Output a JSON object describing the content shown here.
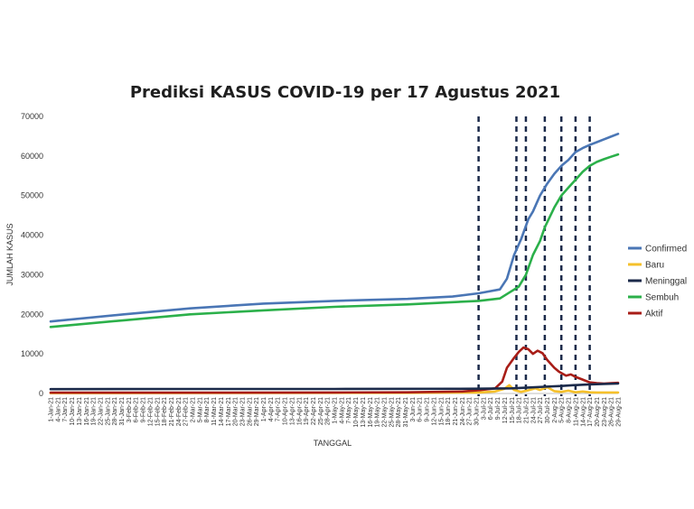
{
  "chart_data": {
    "type": "line",
    "title": "Prediksi KASUS COVID-19 per 17 Agustus 2021",
    "xlabel": "TANGGAL",
    "ylabel": "JUMLAH KASUS",
    "ylim": [
      0,
      70000
    ],
    "yticks": [
      0,
      10000,
      20000,
      30000,
      40000,
      50000,
      60000,
      70000
    ],
    "legend_position": "right",
    "grid": false,
    "x_start": "1-Jan-21",
    "x_end": "29-Aug-21",
    "x_ticks": [
      "1-Jan-21",
      "4-Jan-21",
      "7-Jan-21",
      "10-Jan-21",
      "13-Jan-21",
      "16-Jan-21",
      "19-Jan-21",
      "22-Jan-21",
      "25-Jan-21",
      "28-Jan-21",
      "31-Jan-21",
      "3-Feb-21",
      "6-Feb-21",
      "9-Feb-21",
      "12-Feb-21",
      "15-Feb-21",
      "18-Feb-21",
      "21-Feb-21",
      "24-Feb-21",
      "27-Feb-21",
      "2-Mar-21",
      "5-Mar-21",
      "8-Mar-21",
      "11-Mar-21",
      "14-Mar-21",
      "17-Mar-21",
      "20-Mar-21",
      "23-Mar-21",
      "26-Mar-21",
      "29-Mar-21",
      "1-Apr-21",
      "4-Apr-21",
      "7-Apr-21",
      "10-Apr-21",
      "13-Apr-21",
      "16-Apr-21",
      "19-Apr-21",
      "22-Apr-21",
      "25-Apr-21",
      "28-Apr-21",
      "1-May-21",
      "4-May-21",
      "7-May-21",
      "10-May-21",
      "13-May-21",
      "16-May-21",
      "19-May-21",
      "22-May-21",
      "25-May-21",
      "28-May-21",
      "31-May-21",
      "3-Jun-21",
      "6-Jun-21",
      "9-Jun-21",
      "12-Jun-21",
      "15-Jun-21",
      "18-Jun-21",
      "21-Jun-21",
      "24-Jun-21",
      "27-Jun-21",
      "30-Jun-21",
      "3-Jul-21",
      "6-Jul-21",
      "9-Jul-21",
      "12-Jul-21",
      "15-Jul-21",
      "18-Jul-21",
      "21-Jul-21",
      "24-Jul-21",
      "27-Jul-21",
      "30-Jul-21",
      "2-Aug-21",
      "5-Aug-21",
      "8-Aug-21",
      "11-Aug-21",
      "14-Aug-21",
      "17-Aug-21",
      "20-Aug-21",
      "23-Aug-21",
      "26-Aug-21",
      "29-Aug-21"
    ],
    "reference_lines": [
      "1-Jul-21",
      "17-Jul-21",
      "21-Jul-21",
      "29-Jul-21",
      "5-Aug-21",
      "11-Aug-21",
      "17-Aug-21"
    ],
    "series": [
      {
        "name": "Confirmed",
        "color": "#4a76b5",
        "points": [
          [
            "1-Jan-21",
            18200
          ],
          [
            "1-Feb-21",
            20000
          ],
          [
            "1-Mar-21",
            21500
          ],
          [
            "1-Apr-21",
            22700
          ],
          [
            "1-May-21",
            23400
          ],
          [
            "1-Jun-21",
            23900
          ],
          [
            "20-Jun-21",
            24500
          ],
          [
            "1-Jul-21",
            25300
          ],
          [
            "10-Jul-21",
            26300
          ],
          [
            "13-Jul-21",
            29000
          ],
          [
            "16-Jul-21",
            35000
          ],
          [
            "19-Jul-21",
            39000
          ],
          [
            "22-Jul-21",
            44000
          ],
          [
            "24-Jul-21",
            46000
          ],
          [
            "27-Jul-21",
            50000
          ],
          [
            "30-Jul-21",
            53000
          ],
          [
            "2-Aug-21",
            55500
          ],
          [
            "5-Aug-21",
            57500
          ],
          [
            "8-Aug-21",
            59000
          ],
          [
            "11-Aug-21",
            61000
          ],
          [
            "14-Aug-21",
            62000
          ],
          [
            "17-Aug-21",
            62800
          ],
          [
            "20-Aug-21",
            63500
          ],
          [
            "23-Aug-21",
            64200
          ],
          [
            "26-Aug-21",
            64900
          ],
          [
            "29-Aug-21",
            65600
          ]
        ]
      },
      {
        "name": "Baru",
        "color": "#f5c02b",
        "points": [
          [
            "1-Jan-21",
            100
          ],
          [
            "1-Jun-21",
            150
          ],
          [
            "1-Jul-21",
            250
          ],
          [
            "8-Jul-21",
            500
          ],
          [
            "12-Jul-21",
            1200
          ],
          [
            "14-Jul-21",
            2100
          ],
          [
            "16-Jul-21",
            900
          ],
          [
            "19-Jul-21",
            400
          ],
          [
            "22-Jul-21",
            800
          ],
          [
            "25-Jul-21",
            1300
          ],
          [
            "27-Jul-21",
            900
          ],
          [
            "30-Jul-21",
            1600
          ],
          [
            "2-Aug-21",
            600
          ],
          [
            "5-Aug-21",
            400
          ],
          [
            "8-Aug-21",
            700
          ],
          [
            "11-Aug-21",
            300
          ],
          [
            "14-Aug-21",
            500
          ],
          [
            "17-Aug-21",
            300
          ],
          [
            "20-Aug-21",
            250
          ],
          [
            "29-Aug-21",
            250
          ]
        ]
      },
      {
        "name": "Meninggal",
        "color": "#1b2a4a",
        "points": [
          [
            "1-Jan-21",
            1100
          ],
          [
            "1-Mar-21",
            1150
          ],
          [
            "1-May-21",
            1150
          ],
          [
            "1-Jul-21",
            1200
          ],
          [
            "15-Jul-21",
            1300
          ],
          [
            "22-Jul-21",
            1500
          ],
          [
            "29-Jul-21",
            1700
          ],
          [
            "5-Aug-21",
            1900
          ],
          [
            "10-Aug-21",
            2100
          ],
          [
            "17-Aug-21",
            2300
          ],
          [
            "29-Aug-21",
            2500
          ]
        ]
      },
      {
        "name": "Sembuh",
        "color": "#2bb04a",
        "points": [
          [
            "1-Jan-21",
            16800
          ],
          [
            "1-Feb-21",
            18500
          ],
          [
            "1-Mar-21",
            20000
          ],
          [
            "1-Apr-21",
            21000
          ],
          [
            "1-May-21",
            21900
          ],
          [
            "1-Jun-21",
            22500
          ],
          [
            "1-Jul-21",
            23400
          ],
          [
            "10-Jul-21",
            24000
          ],
          [
            "14-Jul-21",
            25500
          ],
          [
            "18-Jul-21",
            27000
          ],
          [
            "21-Jul-21",
            30000
          ],
          [
            "24-Jul-21",
            35000
          ],
          [
            "27-Jul-21",
            38500
          ],
          [
            "29-Jul-21",
            42000
          ],
          [
            "2-Aug-21",
            47000
          ],
          [
            "5-Aug-21",
            50000
          ],
          [
            "8-Aug-21",
            52000
          ],
          [
            "11-Aug-21",
            54000
          ],
          [
            "14-Aug-21",
            56000
          ],
          [
            "17-Aug-21",
            57500
          ],
          [
            "20-Aug-21",
            58500
          ],
          [
            "23-Aug-21",
            59200
          ],
          [
            "26-Aug-21",
            59800
          ],
          [
            "29-Aug-21",
            60400
          ]
        ]
      },
      {
        "name": "Aktif",
        "color": "#a81d17",
        "points": [
          [
            "1-Jan-21",
            200
          ],
          [
            "1-Mar-21",
            200
          ],
          [
            "1-May-21",
            250
          ],
          [
            "1-Jun-21",
            300
          ],
          [
            "24-Jun-21",
            500
          ],
          [
            "1-Jul-21",
            800
          ],
          [
            "8-Jul-21",
            1300
          ],
          [
            "11-Jul-21",
            3000
          ],
          [
            "13-Jul-21",
            6500
          ],
          [
            "16-Jul-21",
            9000
          ],
          [
            "18-Jul-21",
            10500
          ],
          [
            "20-Jul-21",
            11600
          ],
          [
            "22-Jul-21",
            11200
          ],
          [
            "24-Jul-21",
            10000
          ],
          [
            "26-Jul-21",
            10800
          ],
          [
            "28-Jul-21",
            10200
          ],
          [
            "30-Jul-21",
            8500
          ],
          [
            "2-Aug-21",
            6500
          ],
          [
            "4-Aug-21",
            5500
          ],
          [
            "7-Aug-21",
            4500
          ],
          [
            "9-Aug-21",
            4800
          ],
          [
            "11-Aug-21",
            4200
          ],
          [
            "14-Aug-21",
            3500
          ],
          [
            "17-Aug-21",
            2800
          ],
          [
            "20-Aug-21",
            2600
          ],
          [
            "23-Aug-21",
            2500
          ],
          [
            "26-Aug-21",
            2600
          ],
          [
            "29-Aug-21",
            2700
          ]
        ]
      }
    ]
  }
}
